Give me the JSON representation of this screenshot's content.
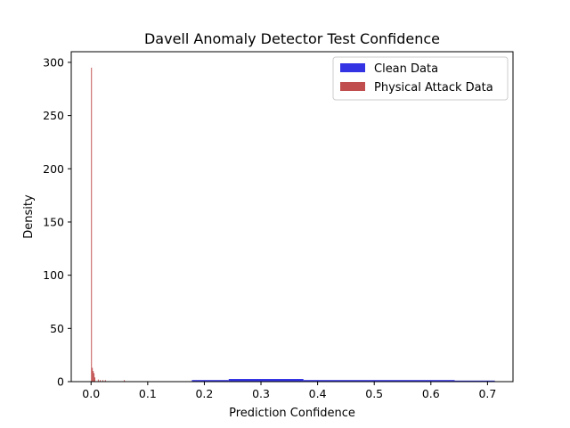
{
  "chart_data": {
    "type": "histogram",
    "title": "Davell Anomaly Detector Test Confidence",
    "xlabel": "Prediction Confidence",
    "ylabel": "Density",
    "xlim": [
      -0.035,
      0.745
    ],
    "ylim": [
      0,
      310
    ],
    "xticks": [
      0.0,
      0.1,
      0.2,
      0.3,
      0.4,
      0.5,
      0.6,
      0.7
    ],
    "xtick_labels": [
      "0.0",
      "0.1",
      "0.2",
      "0.3",
      "0.4",
      "0.5",
      "0.6",
      "0.7"
    ],
    "yticks": [
      0,
      50,
      100,
      150,
      200,
      250,
      300
    ],
    "ytick_labels": [
      "0",
      "50",
      "100",
      "150",
      "200",
      "250",
      "300"
    ],
    "legend_position": "top-right",
    "grid": false,
    "series": [
      {
        "name": "Clean Data",
        "color": "#0000dd",
        "alpha": 0.8,
        "bins": [
          {
            "x0": 0.178,
            "x1": 0.243,
            "y": 1.5
          },
          {
            "x0": 0.243,
            "x1": 0.375,
            "y": 2.5
          },
          {
            "x0": 0.375,
            "x1": 0.642,
            "y": 1.5
          },
          {
            "x0": 0.642,
            "x1": 0.713,
            "y": 1.0
          }
        ]
      },
      {
        "name": "Physical Attack Data",
        "color": "#b22222",
        "alpha": 0.8,
        "bins": [
          {
            "x0": 0.0,
            "x1": 0.0015,
            "y": 295
          },
          {
            "x0": 0.0015,
            "x1": 0.003,
            "y": 13
          },
          {
            "x0": 0.003,
            "x1": 0.0045,
            "y": 10
          },
          {
            "x0": 0.0045,
            "x1": 0.006,
            "y": 8
          },
          {
            "x0": 0.006,
            "x1": 0.0075,
            "y": 4
          },
          {
            "x0": 0.012,
            "x1": 0.0135,
            "y": 2
          },
          {
            "x0": 0.0155,
            "x1": 0.017,
            "y": 1.5
          },
          {
            "x0": 0.02,
            "x1": 0.0215,
            "y": 1.5
          },
          {
            "x0": 0.0245,
            "x1": 0.026,
            "y": 1.5
          },
          {
            "x0": 0.058,
            "x1": 0.0595,
            "y": 1.5
          }
        ]
      }
    ]
  }
}
